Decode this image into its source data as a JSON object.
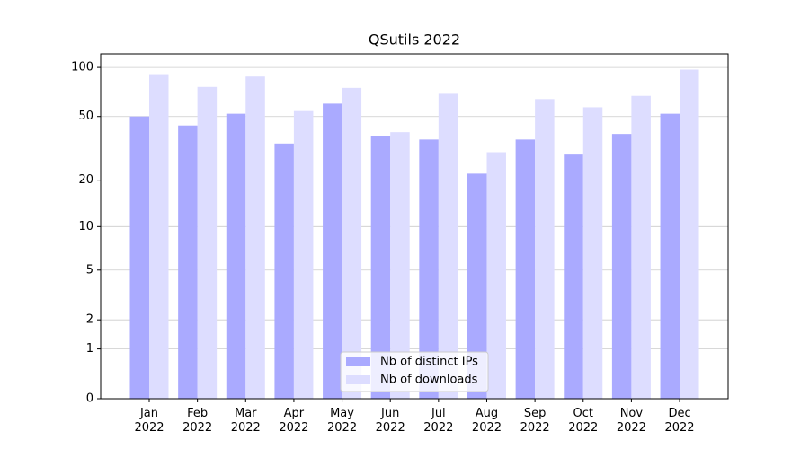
{
  "chart_data": {
    "type": "bar",
    "title": "QSutils 2022",
    "scale": "log1p",
    "grid": true,
    "legend": "lower center",
    "categories": [
      "Jan\n2022",
      "Feb\n2022",
      "Mar\n2022",
      "Apr\n2022",
      "May\n2022",
      "Jun\n2022",
      "Jul\n2022",
      "Aug\n2022",
      "Sep\n2022",
      "Oct\n2022",
      "Nov\n2022",
      "Dec\n2022"
    ],
    "series": [
      {
        "name": "Nb of distinct IPs",
        "color": "#aaaaff",
        "values": [
          50,
          44,
          52,
          34,
          60,
          38,
          36,
          22,
          36,
          29,
          39,
          52
        ]
      },
      {
        "name": "Nb of downloads",
        "color": "#ddddff",
        "values": [
          91,
          76,
          88,
          54,
          75,
          40,
          69,
          30,
          64,
          57,
          67,
          97
        ]
      }
    ],
    "ylim": [
      0,
      121
    ],
    "yticks": [
      0,
      1,
      2,
      5,
      10,
      20,
      50,
      100
    ]
  }
}
